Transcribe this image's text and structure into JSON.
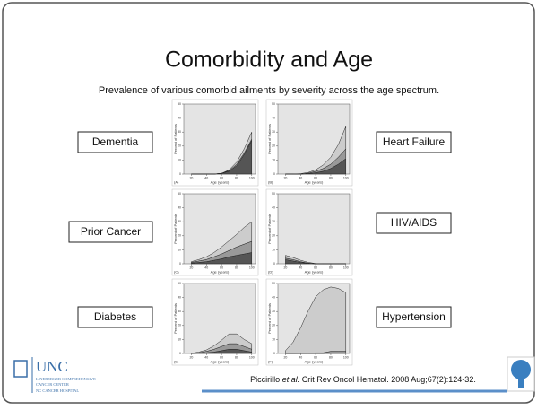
{
  "header": {
    "title": "Comorbidity and Age",
    "subtitle": "Prevalence of various comorbid ailments by severity across the age spectrum."
  },
  "labels": [
    "Dementia",
    "Heart Failure",
    "Prior Cancer",
    "HIV/AIDS",
    "Diabetes",
    "Hypertension"
  ],
  "axes": {
    "xlabel": "Age (years)",
    "ylabel": "Percent of Patients",
    "xlim": [
      10,
      105
    ],
    "ylim": [
      0,
      50
    ],
    "xticks": [
      20,
      40,
      60,
      80,
      100
    ],
    "yticks": [
      0,
      10,
      20,
      30,
      40,
      50
    ]
  },
  "panels": [
    {
      "label": "(A)",
      "x": [
        20,
        30,
        40,
        50,
        60,
        70,
        80,
        90,
        100
      ],
      "series": [
        {
          "color": "#555555",
          "values": [
            0,
            0,
            0,
            0,
            0.5,
            2,
            6,
            14,
            24
          ]
        },
        {
          "color": "#999999",
          "values": [
            0,
            0,
            0,
            0,
            0,
            0.5,
            1,
            1,
            1
          ]
        },
        {
          "color": "#cccccc",
          "values": [
            0,
            0,
            0,
            0,
            0,
            0.5,
            1.5,
            3,
            5
          ]
        }
      ]
    },
    {
      "label": "(B)",
      "x": [
        20,
        30,
        40,
        50,
        60,
        70,
        80,
        90,
        100
      ],
      "series": [
        {
          "color": "#555555",
          "values": [
            0,
            0,
            0,
            0.3,
            1,
            2,
            4,
            7,
            11
          ]
        },
        {
          "color": "#999999",
          "values": [
            0,
            0,
            0,
            0.3,
            1,
            2,
            3,
            5,
            7
          ]
        },
        {
          "color": "#cccccc",
          "values": [
            0,
            0,
            0.3,
            0.5,
            1,
            2.5,
            5,
            9,
            16
          ]
        }
      ]
    },
    {
      "label": "(C)",
      "x": [
        20,
        30,
        40,
        50,
        60,
        70,
        80,
        90,
        100
      ],
      "series": [
        {
          "color": "#555555",
          "values": [
            0.5,
            1,
            1.5,
            2.5,
            3.5,
            5,
            6,
            7,
            8
          ]
        },
        {
          "color": "#999999",
          "values": [
            0.5,
            1,
            1.5,
            2.5,
            3.5,
            4.5,
            6,
            7,
            8
          ]
        },
        {
          "color": "#cccccc",
          "values": [
            0.5,
            1,
            2,
            3,
            5,
            7,
            9,
            12,
            14
          ]
        }
      ]
    },
    {
      "label": "(D)",
      "x": [
        20,
        30,
        40,
        50,
        60,
        70,
        80,
        90,
        100
      ],
      "series": [
        {
          "color": "#555555",
          "values": [
            3,
            2,
            1,
            0.3,
            0,
            0,
            0,
            0,
            0
          ]
        },
        {
          "color": "#999999",
          "values": [
            1,
            1,
            0.5,
            0.2,
            0,
            0,
            0,
            0,
            0
          ]
        },
        {
          "color": "#cccccc",
          "values": [
            2,
            1.5,
            1,
            0.5,
            0.2,
            0,
            0,
            0,
            0
          ]
        }
      ]
    },
    {
      "label": "(E)",
      "x": [
        20,
        30,
        40,
        50,
        60,
        70,
        80,
        90,
        100
      ],
      "series": [
        {
          "color": "#555555",
          "values": [
            0,
            0.2,
            0.5,
            1,
            2,
            3,
            3,
            2,
            1
          ]
        },
        {
          "color": "#999999",
          "values": [
            0,
            0.3,
            1,
            2,
            3,
            4,
            4,
            3,
            2
          ]
        },
        {
          "color": "#cccccc",
          "values": [
            0.2,
            0.5,
            1,
            2.5,
            4.5,
            7,
            7,
            5,
            4
          ]
        }
      ]
    },
    {
      "label": "(F)",
      "x": [
        20,
        30,
        40,
        50,
        60,
        70,
        80,
        90,
        100
      ],
      "series": [
        {
          "color": "#555555",
          "values": [
            0,
            0,
            0,
            0,
            0,
            0,
            0.5,
            0.5,
            0.5
          ]
        },
        {
          "color": "#999999",
          "values": [
            0,
            0,
            0.2,
            0.3,
            0.5,
            0.5,
            1,
            1,
            1
          ]
        },
        {
          "color": "#cccccc",
          "values": [
            2,
            8,
            18,
            30,
            40,
            45,
            46,
            45,
            42
          ]
        }
      ]
    }
  ],
  "footer": {
    "citation_author": "Piccirillo",
    "citation_etal": "et al.",
    "citation_rest": "Crit Rev Oncol Hematol. 2008 Aug;67(2):124-32.",
    "logo": "UNC",
    "logo_line1": "LINEBERGER COMPREHENSIVE",
    "logo_line2": "CANCER CENTER",
    "logo_line3": "NC CANCER HOSPITAL"
  }
}
